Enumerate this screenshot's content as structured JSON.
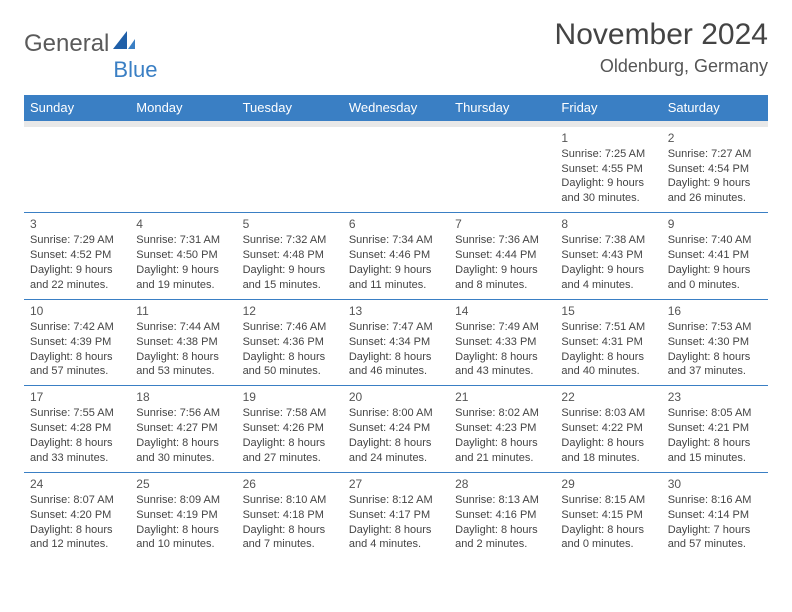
{
  "logo": {
    "general": "General",
    "blue": "Blue"
  },
  "title": "November 2024",
  "location": "Oldenburg, Germany",
  "colors": {
    "header_bg": "#3a7fc4",
    "header_text": "#ffffff",
    "border": "#3a7fc4",
    "text": "#444444"
  },
  "dayHeaders": [
    "Sunday",
    "Monday",
    "Tuesday",
    "Wednesday",
    "Thursday",
    "Friday",
    "Saturday"
  ],
  "weeks": [
    [
      null,
      null,
      null,
      null,
      null,
      {
        "d": "1",
        "sr": "Sunrise: 7:25 AM",
        "ss": "Sunset: 4:55 PM",
        "dl1": "Daylight: 9 hours",
        "dl2": "and 30 minutes."
      },
      {
        "d": "2",
        "sr": "Sunrise: 7:27 AM",
        "ss": "Sunset: 4:54 PM",
        "dl1": "Daylight: 9 hours",
        "dl2": "and 26 minutes."
      }
    ],
    [
      {
        "d": "3",
        "sr": "Sunrise: 7:29 AM",
        "ss": "Sunset: 4:52 PM",
        "dl1": "Daylight: 9 hours",
        "dl2": "and 22 minutes."
      },
      {
        "d": "4",
        "sr": "Sunrise: 7:31 AM",
        "ss": "Sunset: 4:50 PM",
        "dl1": "Daylight: 9 hours",
        "dl2": "and 19 minutes."
      },
      {
        "d": "5",
        "sr": "Sunrise: 7:32 AM",
        "ss": "Sunset: 4:48 PM",
        "dl1": "Daylight: 9 hours",
        "dl2": "and 15 minutes."
      },
      {
        "d": "6",
        "sr": "Sunrise: 7:34 AM",
        "ss": "Sunset: 4:46 PM",
        "dl1": "Daylight: 9 hours",
        "dl2": "and 11 minutes."
      },
      {
        "d": "7",
        "sr": "Sunrise: 7:36 AM",
        "ss": "Sunset: 4:44 PM",
        "dl1": "Daylight: 9 hours",
        "dl2": "and 8 minutes."
      },
      {
        "d": "8",
        "sr": "Sunrise: 7:38 AM",
        "ss": "Sunset: 4:43 PM",
        "dl1": "Daylight: 9 hours",
        "dl2": "and 4 minutes."
      },
      {
        "d": "9",
        "sr": "Sunrise: 7:40 AM",
        "ss": "Sunset: 4:41 PM",
        "dl1": "Daylight: 9 hours",
        "dl2": "and 0 minutes."
      }
    ],
    [
      {
        "d": "10",
        "sr": "Sunrise: 7:42 AM",
        "ss": "Sunset: 4:39 PM",
        "dl1": "Daylight: 8 hours",
        "dl2": "and 57 minutes."
      },
      {
        "d": "11",
        "sr": "Sunrise: 7:44 AM",
        "ss": "Sunset: 4:38 PM",
        "dl1": "Daylight: 8 hours",
        "dl2": "and 53 minutes."
      },
      {
        "d": "12",
        "sr": "Sunrise: 7:46 AM",
        "ss": "Sunset: 4:36 PM",
        "dl1": "Daylight: 8 hours",
        "dl2": "and 50 minutes."
      },
      {
        "d": "13",
        "sr": "Sunrise: 7:47 AM",
        "ss": "Sunset: 4:34 PM",
        "dl1": "Daylight: 8 hours",
        "dl2": "and 46 minutes."
      },
      {
        "d": "14",
        "sr": "Sunrise: 7:49 AM",
        "ss": "Sunset: 4:33 PM",
        "dl1": "Daylight: 8 hours",
        "dl2": "and 43 minutes."
      },
      {
        "d": "15",
        "sr": "Sunrise: 7:51 AM",
        "ss": "Sunset: 4:31 PM",
        "dl1": "Daylight: 8 hours",
        "dl2": "and 40 minutes."
      },
      {
        "d": "16",
        "sr": "Sunrise: 7:53 AM",
        "ss": "Sunset: 4:30 PM",
        "dl1": "Daylight: 8 hours",
        "dl2": "and 37 minutes."
      }
    ],
    [
      {
        "d": "17",
        "sr": "Sunrise: 7:55 AM",
        "ss": "Sunset: 4:28 PM",
        "dl1": "Daylight: 8 hours",
        "dl2": "and 33 minutes."
      },
      {
        "d": "18",
        "sr": "Sunrise: 7:56 AM",
        "ss": "Sunset: 4:27 PM",
        "dl1": "Daylight: 8 hours",
        "dl2": "and 30 minutes."
      },
      {
        "d": "19",
        "sr": "Sunrise: 7:58 AM",
        "ss": "Sunset: 4:26 PM",
        "dl1": "Daylight: 8 hours",
        "dl2": "and 27 minutes."
      },
      {
        "d": "20",
        "sr": "Sunrise: 8:00 AM",
        "ss": "Sunset: 4:24 PM",
        "dl1": "Daylight: 8 hours",
        "dl2": "and 24 minutes."
      },
      {
        "d": "21",
        "sr": "Sunrise: 8:02 AM",
        "ss": "Sunset: 4:23 PM",
        "dl1": "Daylight: 8 hours",
        "dl2": "and 21 minutes."
      },
      {
        "d": "22",
        "sr": "Sunrise: 8:03 AM",
        "ss": "Sunset: 4:22 PM",
        "dl1": "Daylight: 8 hours",
        "dl2": "and 18 minutes."
      },
      {
        "d": "23",
        "sr": "Sunrise: 8:05 AM",
        "ss": "Sunset: 4:21 PM",
        "dl1": "Daylight: 8 hours",
        "dl2": "and 15 minutes."
      }
    ],
    [
      {
        "d": "24",
        "sr": "Sunrise: 8:07 AM",
        "ss": "Sunset: 4:20 PM",
        "dl1": "Daylight: 8 hours",
        "dl2": "and 12 minutes."
      },
      {
        "d": "25",
        "sr": "Sunrise: 8:09 AM",
        "ss": "Sunset: 4:19 PM",
        "dl1": "Daylight: 8 hours",
        "dl2": "and 10 minutes."
      },
      {
        "d": "26",
        "sr": "Sunrise: 8:10 AM",
        "ss": "Sunset: 4:18 PM",
        "dl1": "Daylight: 8 hours",
        "dl2": "and 7 minutes."
      },
      {
        "d": "27",
        "sr": "Sunrise: 8:12 AM",
        "ss": "Sunset: 4:17 PM",
        "dl1": "Daylight: 8 hours",
        "dl2": "and 4 minutes."
      },
      {
        "d": "28",
        "sr": "Sunrise: 8:13 AM",
        "ss": "Sunset: 4:16 PM",
        "dl1": "Daylight: 8 hours",
        "dl2": "and 2 minutes."
      },
      {
        "d": "29",
        "sr": "Sunrise: 8:15 AM",
        "ss": "Sunset: 4:15 PM",
        "dl1": "Daylight: 8 hours",
        "dl2": "and 0 minutes."
      },
      {
        "d": "30",
        "sr": "Sunrise: 8:16 AM",
        "ss": "Sunset: 4:14 PM",
        "dl1": "Daylight: 7 hours",
        "dl2": "and 57 minutes."
      }
    ]
  ]
}
